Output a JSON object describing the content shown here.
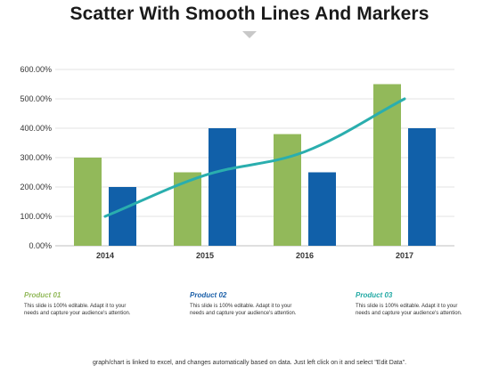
{
  "title": "Scatter With Smooth Lines And Markers",
  "chart_data": {
    "type": "bar",
    "categories": [
      "2014",
      "2015",
      "2016",
      "2017"
    ],
    "ylim": [
      0,
      600
    ],
    "yticks": [
      "0.00%",
      "100.00%",
      "200.00%",
      "300.00%",
      "400.00%",
      "500.00%",
      "600.00%"
    ],
    "grid": true,
    "series": [
      {
        "type": "bar",
        "color": "#92b95a",
        "values": [
          300,
          250,
          380,
          550
        ]
      },
      {
        "type": "bar",
        "color": "#1160a9",
        "values": [
          200,
          400,
          250,
          400
        ]
      },
      {
        "type": "line",
        "color": "#2aaeae",
        "values": [
          100,
          240,
          320,
          500
        ]
      }
    ]
  },
  "products": [
    {
      "title": "Product 01",
      "color": "#92b95a",
      "desc1": "This slide is 100% editable.  Adapt it to your",
      "desc2": "needs and capture your audience's attention."
    },
    {
      "title": "Product 02",
      "color": "#1a5fa8",
      "desc1": "This slide is 100% editable.  Adapt it to your",
      "desc2": "needs and capture your audience's attention."
    },
    {
      "title": "Product 03",
      "color": "#22a9a4",
      "desc1": "This slide is 100% editable.  Adapt it to your",
      "desc2": "needs and capture your audience's attention."
    }
  ],
  "footer": "graph/chart is linked to excel, and changes automatically based on data. Just left click on it and select \"Edit Data\"."
}
